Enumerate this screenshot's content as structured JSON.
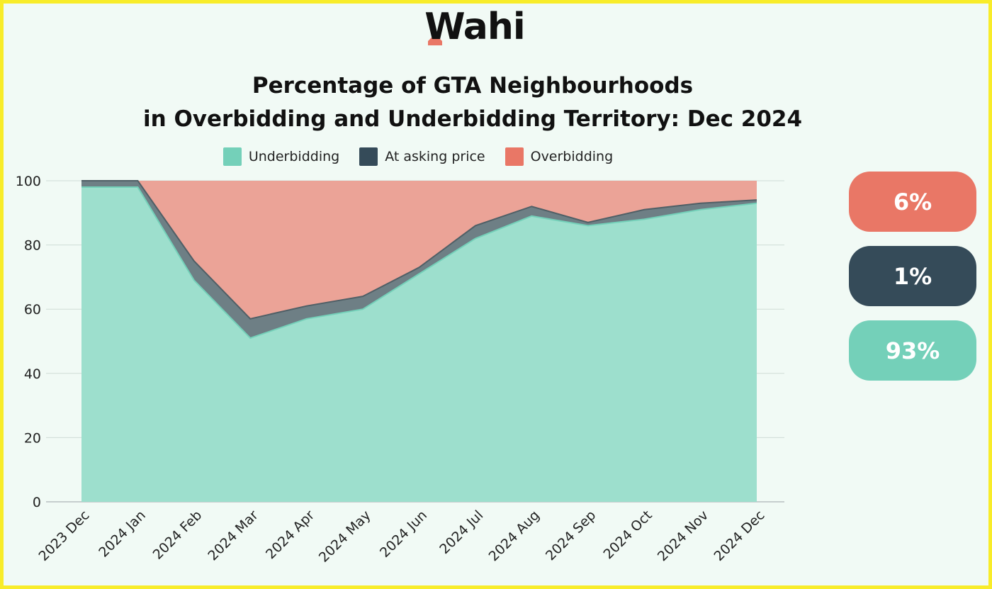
{
  "brand": {
    "logo_text": "Wahi"
  },
  "colors": {
    "underbidding": "#9ddfcd",
    "at_asking": "#6e7f85",
    "overbidding": "#eba397",
    "underbidding_swatch": "#74d0b9",
    "at_asking_swatch": "#354b59",
    "overbidding_swatch": "#e97766"
  },
  "pills": {
    "overbidding": "6%",
    "at_asking": "1%",
    "underbidding": "93%"
  },
  "chart_data": {
    "type": "area",
    "stacked": true,
    "title_line1": "Percentage of GTA Neighbourhoods",
    "title_line2": "in Overbidding and Underbidding Territory: Dec 2024",
    "xlabel": "",
    "ylabel": "",
    "ylim": [
      0,
      100
    ],
    "yticks": [
      0,
      20,
      40,
      60,
      80,
      100
    ],
    "grid": true,
    "legend_position": "top",
    "categories": [
      "2023 Dec",
      "2024 Jan",
      "2024 Feb",
      "2024 Mar",
      "2024 Apr",
      "2024 May",
      "2024 Jun",
      "2024 Jul",
      "2024 Aug",
      "2024 Sep",
      "2024 Oct",
      "2024 Nov",
      "2024 Dec"
    ],
    "series": [
      {
        "name": "Underbidding",
        "values": [
          98,
          98,
          69,
          51,
          57,
          60,
          71,
          82,
          89,
          86,
          88,
          91,
          93
        ]
      },
      {
        "name": "At asking price",
        "values": [
          2,
          2,
          6,
          6,
          4,
          4,
          2,
          4,
          3,
          1,
          3,
          2,
          1
        ]
      },
      {
        "name": "Overbidding",
        "values": [
          0,
          0,
          25,
          43,
          39,
          36,
          27,
          14,
          8,
          13,
          9,
          7,
          6
        ]
      }
    ]
  }
}
